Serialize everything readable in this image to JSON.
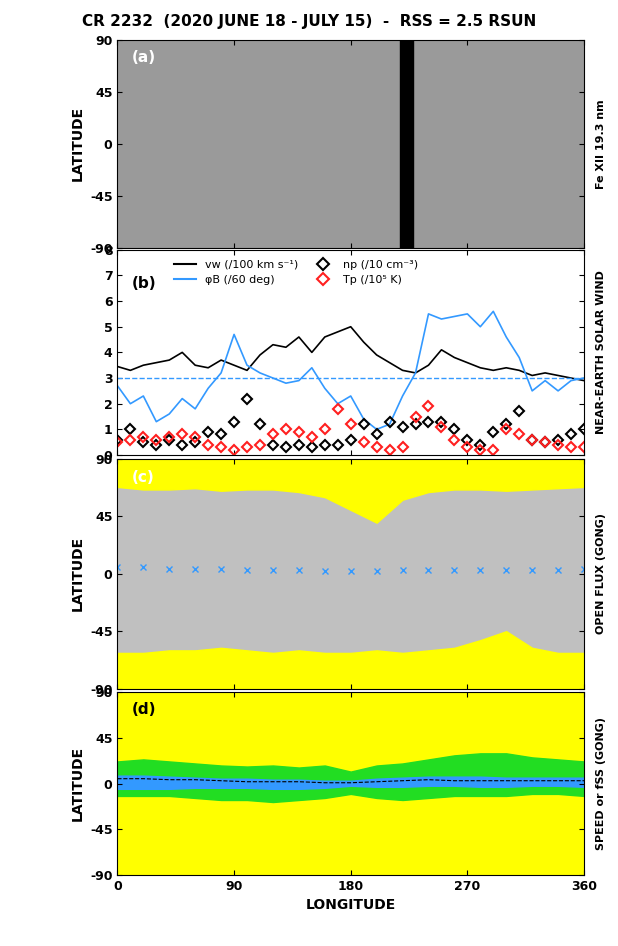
{
  "figure_title": "CR 2232  (2020 JUNE 18 - JULY 15)  -  RSS = 2.5 RSUN",
  "chart_data": [
    {
      "type": "image",
      "panel": "(a)",
      "side_label": "Fe XII 19.3 nm",
      "ylabel": "LATITUDE",
      "xlim": [
        0,
        360
      ],
      "xticks": [
        0,
        90,
        180,
        270,
        360
      ],
      "ylim": [
        -90,
        90
      ],
      "yticks": [
        -90,
        -45,
        0,
        45,
        90
      ],
      "tick_labels": "y",
      "color": "#9a9a9a",
      "data_gap": [
        218,
        228
      ],
      "data_gap_color": "#000000"
    },
    {
      "type": "line",
      "panel": "(b)",
      "side_label": "NEAR-EARTH SOLAR WIND",
      "xlim": [
        0,
        360
      ],
      "xticks": [
        0,
        90,
        180,
        270,
        360
      ],
      "ylim": [
        0,
        8
      ],
      "yticks": [
        0,
        1,
        2,
        3,
        4,
        5,
        6,
        7,
        8
      ],
      "tick_labels": "y",
      "legend": "upper left",
      "reference_line": {
        "value": 3,
        "color": "#3399ff",
        "line_style": "dashed"
      },
      "x": [
        0,
        10,
        20,
        30,
        40,
        50,
        60,
        70,
        80,
        90,
        100,
        110,
        120,
        130,
        140,
        150,
        160,
        170,
        180,
        190,
        200,
        210,
        220,
        230,
        240,
        250,
        260,
        270,
        280,
        290,
        300,
        310,
        320,
        330,
        340,
        350,
        360
      ],
      "series": [
        {
          "name": "vw (/100 km s⁻¹)",
          "type": "line",
          "color": "#000000",
          "line_style": "solid",
          "values": [
            3.45,
            3.3,
            3.5,
            3.6,
            3.7,
            4.0,
            3.5,
            3.4,
            3.7,
            3.5,
            3.3,
            3.9,
            4.3,
            4.2,
            4.6,
            4.0,
            4.6,
            4.8,
            5.0,
            4.4,
            3.9,
            3.6,
            3.3,
            3.2,
            3.5,
            4.1,
            3.8,
            3.6,
            3.4,
            3.3,
            3.4,
            3.3,
            3.1,
            3.2,
            3.1,
            3.0,
            2.9
          ]
        },
        {
          "name": "φB (/60 deg)",
          "type": "line",
          "color": "#3399ff",
          "line_style": "solid",
          "values": [
            2.7,
            2.0,
            2.3,
            1.3,
            1.6,
            2.2,
            1.8,
            2.6,
            3.2,
            4.7,
            3.5,
            3.2,
            3.0,
            2.8,
            2.9,
            3.4,
            2.6,
            2.0,
            2.3,
            1.4,
            1.0,
            1.2,
            2.3,
            3.2,
            5.5,
            5.3,
            5.4,
            5.5,
            5.0,
            5.6,
            4.6,
            3.8,
            2.5,
            2.9,
            2.5,
            2.9,
            3.0
          ]
        },
        {
          "name": "np (/10 cm⁻³)",
          "type": "scatter",
          "color": "#000000",
          "marker": "D",
          "values": [
            0.6,
            1.0,
            0.5,
            0.4,
            0.6,
            0.4,
            0.5,
            0.9,
            0.8,
            1.3,
            2.2,
            1.2,
            0.4,
            0.3,
            0.4,
            0.3,
            0.4,
            0.4,
            0.6,
            1.2,
            0.8,
            1.3,
            1.1,
            1.2,
            1.3,
            1.3,
            1.0,
            0.6,
            0.4,
            0.9,
            1.2,
            1.7,
            0.6,
            0.5,
            0.6,
            0.8,
            1.0
          ]
        },
        {
          "name": "Tp (/10⁵ K)",
          "type": "scatter",
          "color": "#ff2020",
          "marker": "D",
          "values": [
            0.5,
            0.6,
            0.7,
            0.6,
            0.7,
            0.8,
            0.7,
            0.4,
            0.3,
            0.2,
            0.3,
            0.4,
            0.8,
            1.0,
            0.9,
            0.7,
            1.0,
            1.8,
            1.2,
            0.5,
            0.3,
            0.2,
            0.3,
            1.5,
            1.9,
            1.1,
            0.6,
            0.3,
            0.2,
            0.2,
            1.0,
            0.8,
            0.6,
            0.5,
            0.4,
            0.3,
            0.3
          ]
        }
      ]
    },
    {
      "type": "map",
      "panel": "(c)",
      "side_label": "OPEN FLUX (GONG)",
      "ylabel": "LATITUDE",
      "xlim": [
        0,
        360
      ],
      "xticks": [
        0,
        90,
        180,
        270,
        360
      ],
      "ylim": [
        -90,
        90
      ],
      "yticks": [
        -90,
        -45,
        0,
        45,
        90
      ],
      "tick_labels": "y",
      "color": "#c0c0c0",
      "hole_color": "#ffff00",
      "ecliptic_color": "#3399ff",
      "ecliptic_marker": "x",
      "x": [
        0,
        20,
        40,
        60,
        80,
        100,
        120,
        140,
        160,
        180,
        200,
        220,
        240,
        260,
        280,
        300,
        320,
        340,
        360
      ],
      "north_hole_boundary": [
        68,
        66,
        66,
        67,
        65,
        66,
        66,
        64,
        60,
        50,
        40,
        58,
        64,
        66,
        66,
        65,
        66,
        67,
        68
      ],
      "south_hole_boundary": [
        -62,
        -62,
        -60,
        -60,
        -58,
        -60,
        -62,
        -60,
        -62,
        -62,
        -60,
        -62,
        -60,
        -58,
        -52,
        -45,
        -58,
        -62,
        -62
      ],
      "ecliptic_lat": [
        5,
        5,
        4,
        4,
        4,
        3,
        3,
        3,
        2,
        2,
        2,
        3,
        3,
        3,
        3,
        3,
        3,
        3,
        4
      ]
    },
    {
      "type": "map",
      "panel": "(d)",
      "side_label": "SPEED or fSS (GONG)",
      "ylabel": "LATITUDE",
      "xlabel": "LONGITUDE",
      "xlim": [
        0,
        360
      ],
      "xticks": [
        0,
        90,
        180,
        270,
        360
      ],
      "ylim": [
        -90,
        90
      ],
      "yticks": [
        -90,
        -45,
        0,
        45,
        90
      ],
      "color": "#ffff00",
      "band_colors": [
        "#22dd22",
        "#3399ff"
      ],
      "line_style": "dashed",
      "x": [
        0,
        20,
        40,
        60,
        80,
        100,
        120,
        140,
        160,
        180,
        200,
        220,
        240,
        260,
        280,
        300,
        320,
        340,
        360
      ],
      "green_upper": [
        22,
        24,
        22,
        20,
        18,
        17,
        18,
        16,
        18,
        12,
        18,
        20,
        24,
        28,
        30,
        30,
        26,
        24,
        22
      ],
      "green_lower": [
        -12,
        -12,
        -12,
        -14,
        -16,
        -16,
        -18,
        -16,
        -14,
        -10,
        -14,
        -16,
        -14,
        -12,
        -12,
        -12,
        -10,
        -10,
        -12
      ],
      "blue_upper": [
        8,
        8,
        7,
        6,
        5,
        5,
        4,
        4,
        3,
        3,
        5,
        6,
        7,
        7,
        7,
        6,
        6,
        6,
        6
      ],
      "blue_lower": [
        -5,
        -5,
        -5,
        -4,
        -4,
        -4,
        -5,
        -5,
        -4,
        -2,
        -3,
        -3,
        -2,
        -2,
        -3,
        -3,
        -2,
        -2,
        -3
      ],
      "ecliptic_lat": [
        5,
        5,
        4,
        4,
        3,
        2,
        2,
        2,
        1,
        1,
        2,
        3,
        4,
        3,
        3,
        3,
        3,
        3,
        3
      ]
    }
  ]
}
